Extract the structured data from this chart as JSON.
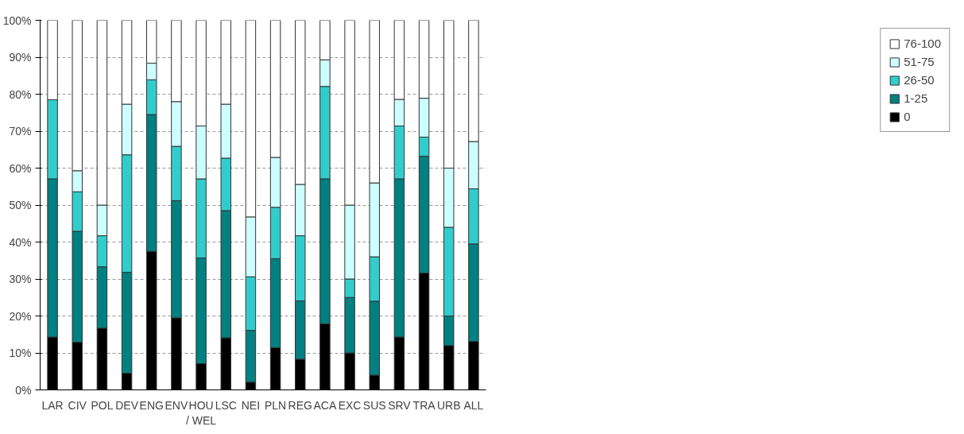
{
  "chart_data": {
    "type": "bar",
    "stacked": true,
    "categories": [
      "LAR",
      "CIV",
      "POL",
      "DEV",
      "ENG",
      "ENV",
      "HOU / WEL",
      "LSC",
      "NEI",
      "PLN",
      "REG",
      "ACA",
      "EXC",
      "SUS",
      "SRV",
      "TRA",
      "URB",
      "ALL"
    ],
    "series": [
      {
        "name": "0",
        "color": "#000000",
        "values": [
          14.3,
          12.9,
          16.7,
          4.5,
          37.5,
          19.5,
          7.1,
          14.1,
          2.1,
          11.4,
          8.3,
          17.9,
          10,
          4,
          14.3,
          31.6,
          12,
          13.1
        ]
      },
      {
        "name": "1-25",
        "color": "#008080",
        "values": [
          42.8,
          30,
          16.6,
          27.3,
          37,
          31.7,
          28.6,
          34.4,
          14,
          24.1,
          15.8,
          39.2,
          15,
          20,
          42.8,
          31.6,
          8,
          26.4
        ]
      },
      {
        "name": "26-50",
        "color": "#33cccc",
        "values": [
          21.4,
          10.7,
          8.4,
          31.8,
          9.4,
          14.7,
          21.4,
          14.2,
          14.5,
          13.9,
          17.6,
          25,
          5,
          12,
          14.3,
          5.2,
          24,
          14.9
        ]
      },
      {
        "name": "51-75",
        "color": "#ccffff",
        "values": [
          0,
          5.7,
          8.3,
          13.7,
          4.5,
          12.1,
          14.3,
          14.6,
          16.2,
          13.5,
          13.9,
          7.2,
          20,
          20,
          7.2,
          10.5,
          16,
          12.8
        ]
      },
      {
        "name": "76-100",
        "color": "#ffffff",
        "values": [
          21.5,
          40.7,
          50,
          22.7,
          11.6,
          22,
          28.6,
          22.7,
          53.2,
          37.1,
          44.4,
          10.7,
          50,
          44,
          21.4,
          21.1,
          40,
          32.8
        ]
      }
    ],
    "ylim": [
      0,
      100
    ],
    "yticks": [
      {
        "value": 0,
        "label": "0%"
      },
      {
        "value": 10,
        "label": "10%"
      },
      {
        "value": 20,
        "label": "20%"
      },
      {
        "value": 30,
        "label": "30%"
      },
      {
        "value": 40,
        "label": "40%"
      },
      {
        "value": 50,
        "label": "50%"
      },
      {
        "value": 60,
        "label": "60%"
      },
      {
        "value": 70,
        "label": "70%"
      },
      {
        "value": 80,
        "label": "80%"
      },
      {
        "value": 90,
        "label": "90%"
      },
      {
        "value": 100,
        "label": "100%"
      }
    ],
    "grid": "y",
    "legend": "right"
  }
}
